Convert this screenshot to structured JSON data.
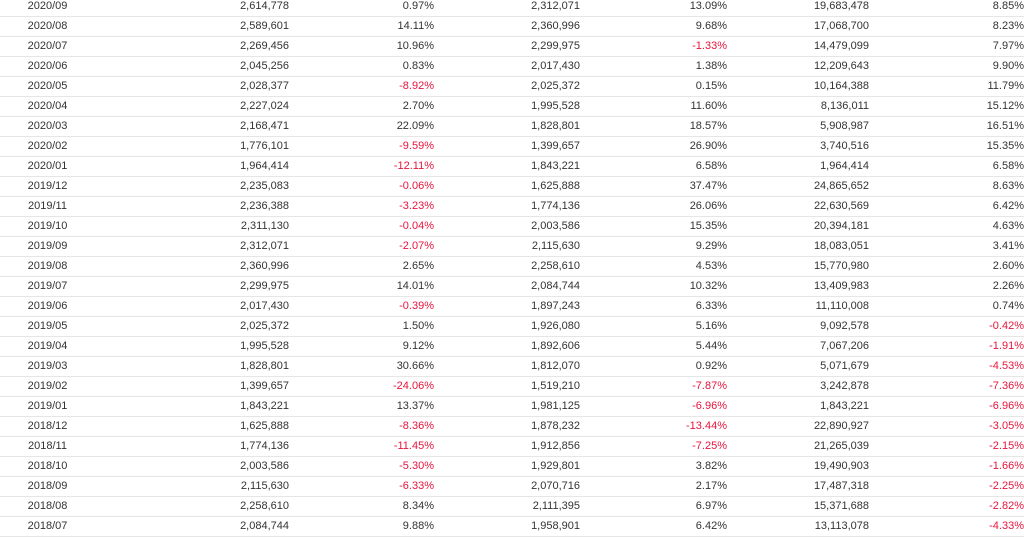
{
  "table": {
    "rows": [
      [
        "2020/09",
        "2,614,778",
        "0.97%",
        "2,312,071",
        "13.09%",
        "19,683,478",
        "8.85%"
      ],
      [
        "2020/08",
        "2,589,601",
        "14.11%",
        "2,360,996",
        "9.68%",
        "17,068,700",
        "8.23%"
      ],
      [
        "2020/07",
        "2,269,456",
        "10.96%",
        "2,299,975",
        "-1.33%",
        "14,479,099",
        "7.97%"
      ],
      [
        "2020/06",
        "2,045,256",
        "0.83%",
        "2,017,430",
        "1.38%",
        "12,209,643",
        "9.90%"
      ],
      [
        "2020/05",
        "2,028,377",
        "-8.92%",
        "2,025,372",
        "0.15%",
        "10,164,388",
        "11.79%"
      ],
      [
        "2020/04",
        "2,227,024",
        "2.70%",
        "1,995,528",
        "11.60%",
        "8,136,011",
        "15.12%"
      ],
      [
        "2020/03",
        "2,168,471",
        "22.09%",
        "1,828,801",
        "18.57%",
        "5,908,987",
        "16.51%"
      ],
      [
        "2020/02",
        "1,776,101",
        "-9.59%",
        "1,399,657",
        "26.90%",
        "3,740,516",
        "15.35%"
      ],
      [
        "2020/01",
        "1,964,414",
        "-12.11%",
        "1,843,221",
        "6.58%",
        "1,964,414",
        "6.58%"
      ],
      [
        "2019/12",
        "2,235,083",
        "-0.06%",
        "1,625,888",
        "37.47%",
        "24,865,652",
        "8.63%"
      ],
      [
        "2019/11",
        "2,236,388",
        "-3.23%",
        "1,774,136",
        "26.06%",
        "22,630,569",
        "6.42%"
      ],
      [
        "2019/10",
        "2,311,130",
        "-0.04%",
        "2,003,586",
        "15.35%",
        "20,394,181",
        "4.63%"
      ],
      [
        "2019/09",
        "2,312,071",
        "-2.07%",
        "2,115,630",
        "9.29%",
        "18,083,051",
        "3.41%"
      ],
      [
        "2019/08",
        "2,360,996",
        "2.65%",
        "2,258,610",
        "4.53%",
        "15,770,980",
        "2.60%"
      ],
      [
        "2019/07",
        "2,299,975",
        "14.01%",
        "2,084,744",
        "10.32%",
        "13,409,983",
        "2.26%"
      ],
      [
        "2019/06",
        "2,017,430",
        "-0.39%",
        "1,897,243",
        "6.33%",
        "11,110,008",
        "0.74%"
      ],
      [
        "2019/05",
        "2,025,372",
        "1.50%",
        "1,926,080",
        "5.16%",
        "9,092,578",
        "-0.42%"
      ],
      [
        "2019/04",
        "1,995,528",
        "9.12%",
        "1,892,606",
        "5.44%",
        "7,067,206",
        "-1.91%"
      ],
      [
        "2019/03",
        "1,828,801",
        "30.66%",
        "1,812,070",
        "0.92%",
        "5,071,679",
        "-4.53%"
      ],
      [
        "2019/02",
        "1,399,657",
        "-24.06%",
        "1,519,210",
        "-7.87%",
        "3,242,878",
        "-7.36%"
      ],
      [
        "2019/01",
        "1,843,221",
        "13.37%",
        "1,981,125",
        "-6.96%",
        "1,843,221",
        "-6.96%"
      ],
      [
        "2018/12",
        "1,625,888",
        "-8.36%",
        "1,878,232",
        "-13.44%",
        "22,890,927",
        "-3.05%"
      ],
      [
        "2018/11",
        "1,774,136",
        "-11.45%",
        "1,912,856",
        "-7.25%",
        "21,265,039",
        "-2.15%"
      ],
      [
        "2018/10",
        "2,003,586",
        "-5.30%",
        "1,929,801",
        "3.82%",
        "19,490,903",
        "-1.66%"
      ],
      [
        "2018/09",
        "2,115,630",
        "-6.33%",
        "2,070,716",
        "2.17%",
        "17,487,318",
        "-2.25%"
      ],
      [
        "2018/08",
        "2,258,610",
        "8.34%",
        "2,111,395",
        "6.97%",
        "15,371,688",
        "-2.82%"
      ],
      [
        "2018/07",
        "2,084,744",
        "9.88%",
        "1,958,901",
        "6.42%",
        "13,113,078",
        "-4.33%"
      ]
    ]
  },
  "colors": {
    "text": "#333333",
    "negative": "#e8143c",
    "row_border": "#e6e6e6"
  }
}
